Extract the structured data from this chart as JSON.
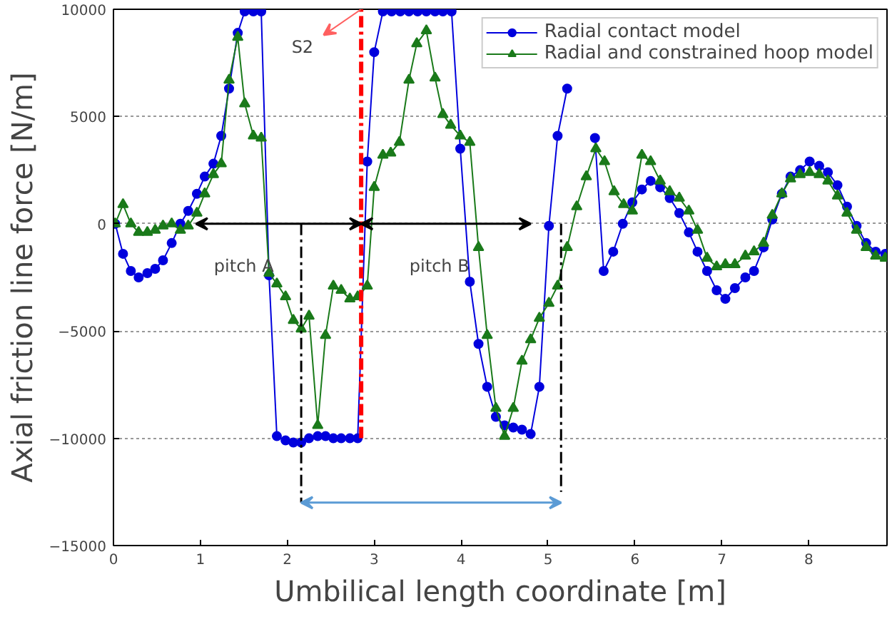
{
  "chart_data": {
    "type": "line",
    "xlabel": "Umbilical length coordinate [m]",
    "ylabel": "Axial friction line force [N/m]",
    "xlim": [
      0,
      8.9
    ],
    "ylim": [
      -15000,
      10000
    ],
    "xticks": [
      0,
      1,
      2,
      3,
      4,
      5,
      6,
      7,
      8
    ],
    "yticks": [
      -15000,
      -10000,
      -5000,
      0,
      5000,
      10000
    ],
    "grid": true,
    "legend": "top right",
    "series": [
      {
        "name": "Radial contact model",
        "color": "#0000dd",
        "marker": "circle",
        "x": [
          0.02,
          0.11,
          0.2,
          0.29,
          0.39,
          0.48,
          0.57,
          0.67,
          0.77,
          0.86,
          0.96,
          1.05,
          1.15,
          1.24,
          1.33,
          1.43,
          1.51,
          1.61,
          1.7,
          1.79,
          1.88,
          1.98,
          2.07,
          2.16,
          2.25,
          2.35,
          2.44,
          2.53,
          2.62,
          2.72,
          2.81,
          2.92,
          3.0,
          3.1,
          3.2,
          3.3,
          3.4,
          3.5,
          3.6,
          3.7,
          3.79,
          3.89,
          3.99,
          4.1,
          4.2,
          4.3,
          4.4,
          4.5,
          4.6,
          4.7,
          4.8,
          4.9,
          5.01,
          5.11,
          5.22,
          5.32,
          5.43,
          5.54,
          5.64,
          5.75,
          5.86,
          5.97,
          6.08,
          6.18,
          6.29,
          6.4,
          6.51,
          6.62,
          6.72,
          6.83,
          6.94,
          7.04,
          7.15,
          7.27,
          7.37,
          7.48,
          7.58,
          7.69,
          7.79,
          7.9,
          8.01,
          8.12,
          8.22,
          8.33,
          8.44,
          8.55,
          8.66,
          8.77,
          8.88
        ],
        "values": [
          0,
          -1400,
          -2200,
          -2500,
          -2300,
          -2100,
          -1700,
          -900,
          0,
          600,
          1400,
          2200,
          2800,
          4100,
          6300,
          8900,
          9900,
          9900,
          9900,
          -2400,
          -9900,
          -10100,
          -10200,
          -10200,
          -10000,
          -9900,
          -9900,
          -10000,
          -10000,
          -10000,
          -10000,
          2900,
          8000,
          9900,
          9900,
          9900,
          9900,
          9900,
          9900,
          9900,
          9900,
          9900,
          3500,
          -2700,
          -5600,
          -7600,
          -9000,
          -9400,
          -9500,
          -9600,
          -9800,
          -7600,
          -100,
          4100,
          6300,
          null,
          null,
          4000,
          -2200,
          -1300,
          0,
          1000,
          1600,
          2000,
          1700,
          1200,
          500,
          -400,
          -1300,
          -2200,
          -3100,
          -3500,
          -3000,
          -2500,
          -2200,
          -1100,
          200,
          1400,
          2200,
          2500,
          2900,
          2700,
          2400,
          1800,
          800,
          -100,
          -900,
          -1300,
          -1400
        ]
      },
      {
        "name": "Radial and constrained hoop model",
        "color": "#1a7a1a",
        "marker": "triangle",
        "x": [
          0.02,
          0.11,
          0.2,
          0.29,
          0.39,
          0.48,
          0.57,
          0.67,
          0.77,
          0.86,
          0.96,
          1.05,
          1.15,
          1.24,
          1.33,
          1.43,
          1.51,
          1.61,
          1.7,
          1.79,
          1.88,
          1.98,
          2.07,
          2.16,
          2.25,
          2.35,
          2.44,
          2.53,
          2.62,
          2.72,
          2.81,
          2.92,
          3.0,
          3.1,
          3.19,
          3.29,
          3.4,
          3.49,
          3.6,
          3.7,
          3.79,
          3.88,
          3.99,
          4.1,
          4.2,
          4.3,
          4.4,
          4.5,
          4.6,
          4.7,
          4.8,
          4.9,
          5.01,
          5.11,
          5.22,
          5.33,
          5.44,
          5.55,
          5.65,
          5.76,
          5.87,
          5.97,
          6.08,
          6.18,
          6.29,
          6.4,
          6.51,
          6.62,
          6.72,
          6.83,
          6.94,
          7.04,
          7.15,
          7.27,
          7.37,
          7.48,
          7.58,
          7.69,
          7.79,
          7.9,
          8.01,
          8.12,
          8.22,
          8.33,
          8.44,
          8.55,
          8.66,
          8.77,
          8.88
        ],
        "values": [
          0,
          900,
          0,
          -400,
          -400,
          -300,
          -100,
          0,
          -300,
          -100,
          500,
          1400,
          2300,
          2800,
          6700,
          8700,
          5600,
          4100,
          4000,
          -2300,
          -2800,
          -3400,
          -4500,
          -4900,
          -4300,
          -9400,
          -5200,
          -2900,
          -3100,
          -3500,
          -3400,
          -2900,
          1700,
          3200,
          3300,
          3800,
          6700,
          8400,
          9000,
          6800,
          5100,
          4600,
          4100,
          3800,
          -1100,
          -5200,
          -8600,
          -9900,
          -8600,
          -6400,
          -5400,
          -4400,
          -3700,
          -2900,
          -1100,
          800,
          2200,
          3500,
          2900,
          1500,
          900,
          600,
          3200,
          2900,
          2000,
          1500,
          1200,
          600,
          -300,
          -1600,
          -2000,
          -1900,
          -1900,
          -1500,
          -1300,
          -900,
          400,
          1400,
          2100,
          2300,
          2400,
          2300,
          2000,
          1300,
          500,
          -300,
          -1100,
          -1500,
          -1600
        ]
      },
      {
        "type": "line",
        "color": "#ff0000",
        "line_style": "dashed",
        "x": [
          2.85,
          2.85
        ],
        "values": [
          -10000,
          10000
        ]
      }
    ],
    "ref_lines": [
      {
        "axis": "x",
        "value": 2.16,
        "color": "#000000",
        "line_style": "dashed"
      },
      {
        "axis": "x",
        "value": 5.15,
        "color": "#000000",
        "line_style": "dashed"
      }
    ],
    "annotations": [
      "S2",
      "pitch A",
      "pitch B"
    ]
  }
}
